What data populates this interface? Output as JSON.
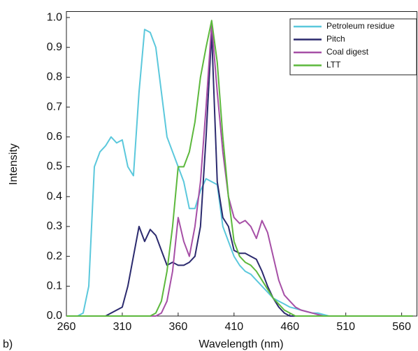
{
  "chart_data": {
    "type": "line",
    "xlabel": "Wavelength (nm)",
    "ylabel": "Intensity",
    "annotation": "b)",
    "x": [
      260,
      265,
      270,
      275,
      280,
      285,
      290,
      295,
      300,
      305,
      310,
      315,
      320,
      325,
      330,
      335,
      340,
      345,
      350,
      355,
      360,
      365,
      370,
      375,
      380,
      385,
      390,
      395,
      400,
      405,
      410,
      415,
      420,
      425,
      430,
      435,
      440,
      445,
      450,
      455,
      460,
      465,
      470,
      475,
      480,
      485,
      490,
      495,
      500,
      505,
      510,
      515,
      520,
      525,
      530,
      535,
      540,
      545,
      550,
      555,
      560,
      565,
      570
    ],
    "series": [
      {
        "name": "Petroleum residue",
        "color": "#5bc8dc",
        "values": [
          0,
          0,
          0,
          0.01,
          0.1,
          0.5,
          0.55,
          0.57,
          0.6,
          0.58,
          0.59,
          0.5,
          0.47,
          0.75,
          0.96,
          0.95,
          0.9,
          0.75,
          0.6,
          0.55,
          0.5,
          0.45,
          0.36,
          0.36,
          0.42,
          0.46,
          0.45,
          0.44,
          0.3,
          0.25,
          0.2,
          0.17,
          0.15,
          0.14,
          0.12,
          0.1,
          0.08,
          0.06,
          0.05,
          0.04,
          0.03,
          0.025,
          0.02,
          0.015,
          0.01,
          0.01,
          0.005,
          0,
          0,
          0,
          0,
          0,
          0,
          0,
          0,
          0,
          0,
          0,
          0,
          0,
          0,
          0,
          0
        ]
      },
      {
        "name": "Pitch",
        "color": "#2b2a6e",
        "values": [
          0,
          0,
          0,
          0,
          0,
          0,
          0,
          0,
          0.01,
          0.02,
          0.03,
          0.1,
          0.2,
          0.3,
          0.25,
          0.29,
          0.27,
          0.22,
          0.17,
          0.18,
          0.17,
          0.17,
          0.18,
          0.2,
          0.3,
          0.6,
          0.95,
          0.45,
          0.33,
          0.3,
          0.22,
          0.21,
          0.21,
          0.2,
          0.19,
          0.15,
          0.1,
          0.06,
          0.03,
          0.01,
          0,
          0,
          0,
          0,
          0,
          0,
          0,
          0,
          0,
          0,
          0,
          0,
          0,
          0,
          0,
          0,
          0,
          0,
          0,
          0,
          0,
          0,
          0
        ]
      },
      {
        "name": "Coal digest",
        "color": "#a64fa6",
        "values": [
          0,
          0,
          0,
          0,
          0,
          0,
          0,
          0,
          0,
          0,
          0,
          0,
          0,
          0,
          0,
          0,
          0,
          0.01,
          0.05,
          0.15,
          0.33,
          0.25,
          0.2,
          0.3,
          0.45,
          0.7,
          0.98,
          0.75,
          0.55,
          0.4,
          0.33,
          0.31,
          0.32,
          0.3,
          0.26,
          0.32,
          0.28,
          0.2,
          0.12,
          0.07,
          0.05,
          0.03,
          0.02,
          0.015,
          0.01,
          0.005,
          0,
          0,
          0,
          0,
          0,
          0,
          0,
          0,
          0,
          0,
          0,
          0,
          0,
          0,
          0,
          0,
          0
        ]
      },
      {
        "name": "LTT",
        "color": "#5cb83c",
        "values": [
          0,
          0,
          0,
          0,
          0,
          0,
          0,
          0,
          0,
          0,
          0,
          0,
          0,
          0,
          0,
          0,
          0.01,
          0.05,
          0.15,
          0.3,
          0.5,
          0.5,
          0.55,
          0.65,
          0.8,
          0.9,
          0.99,
          0.85,
          0.6,
          0.4,
          0.25,
          0.2,
          0.18,
          0.17,
          0.15,
          0.12,
          0.09,
          0.06,
          0.04,
          0.02,
          0.01,
          0,
          0,
          0,
          0,
          0,
          0,
          0,
          0,
          0,
          0,
          0,
          0,
          0,
          0,
          0,
          0,
          0,
          0,
          0,
          0,
          0,
          0
        ]
      }
    ],
    "xlim": [
      260,
      574
    ],
    "ylim": [
      0,
      1.02
    ],
    "xticks": [
      260,
      310,
      360,
      410,
      460,
      510,
      560
    ],
    "yticks": [
      {
        "value": 0,
        "label": "0.0"
      },
      0.1,
      0.2,
      0.3,
      0.4,
      0.5,
      0.6,
      0.7,
      0.8,
      0.9,
      {
        "value": 1,
        "label": "1.0"
      }
    ],
    "legend": "top-right"
  }
}
